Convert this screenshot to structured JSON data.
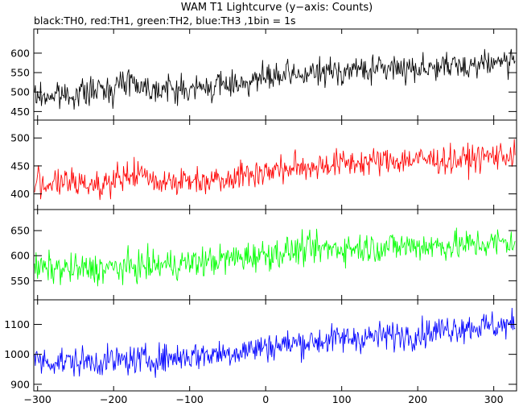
{
  "chart_data": {
    "type": "line",
    "title": "WAM T1 Lightcurve (y−axis: Counts)",
    "subtitle": "black:TH0, red:TH1, green:TH2, blue:TH3 ,1bin = 1s",
    "xlim": [
      -305,
      330
    ],
    "x_ticks": [
      -300,
      -200,
      -100,
      0,
      100,
      200,
      300
    ],
    "x_tick_labels": [
      "−300",
      "−200",
      "−100",
      "0",
      "100",
      "200",
      "300"
    ],
    "grid": false,
    "panels": [
      {
        "ylim": [
          428,
          662
        ],
        "y_ticks": [
          450,
          500,
          550,
          600
        ],
        "y_tick_labels": [
          "450",
          "500",
          "550",
          "600"
        ],
        "series": {
          "color": "#000000",
          "trend_x": [
            -300,
            -250,
            -200,
            -180,
            -160,
            -100,
            -50,
            0,
            50,
            100,
            150,
            200,
            250,
            300,
            330
          ],
          "trend_y": [
            488,
            495,
            510,
            535,
            512,
            505,
            520,
            535,
            545,
            555,
            560,
            563,
            565,
            578,
            580
          ],
          "noise_amplitude": 25
        }
      },
      {
        "ylim": [
          372,
          532
        ],
        "y_ticks": [
          400,
          450,
          500
        ],
        "y_tick_labels": [
          "400",
          "450",
          "500"
        ],
        "series": {
          "color": "#ff0000",
          "trend_x": [
            -300,
            -250,
            -200,
            -170,
            -150,
            -100,
            -50,
            0,
            50,
            100,
            150,
            200,
            250,
            300,
            330
          ],
          "trend_y": [
            420,
            418,
            420,
            438,
            425,
            422,
            430,
            440,
            448,
            455,
            458,
            462,
            460,
            468,
            470
          ],
          "noise_amplitude": 18
        }
      },
      {
        "ylim": [
          512,
          692
        ],
        "y_ticks": [
          550,
          600,
          650
        ],
        "y_tick_labels": [
          "550",
          "600",
          "650"
        ],
        "series": {
          "color": "#00ff00",
          "trend_x": [
            -300,
            -250,
            -200,
            -150,
            -100,
            -50,
            0,
            50,
            100,
            150,
            200,
            250,
            300,
            330
          ],
          "trend_y": [
            575,
            572,
            575,
            580,
            585,
            593,
            603,
            612,
            615,
            617,
            620,
            620,
            625,
            628
          ],
          "noise_amplitude": 22
        }
      },
      {
        "ylim": [
          878,
          1182
        ],
        "y_ticks": [
          900,
          1000,
          1100
        ],
        "y_tick_labels": [
          "900",
          "1000",
          "1100"
        ],
        "series": {
          "color": "#0000ff",
          "trend_x": [
            -300,
            -250,
            -200,
            -150,
            -100,
            -50,
            0,
            50,
            100,
            150,
            200,
            250,
            300,
            330
          ],
          "trend_y": [
            978,
            975,
            978,
            983,
            995,
            1005,
            1025,
            1040,
            1052,
            1060,
            1068,
            1090,
            1095,
            1098
          ],
          "noise_amplitude": 35
        }
      }
    ]
  }
}
